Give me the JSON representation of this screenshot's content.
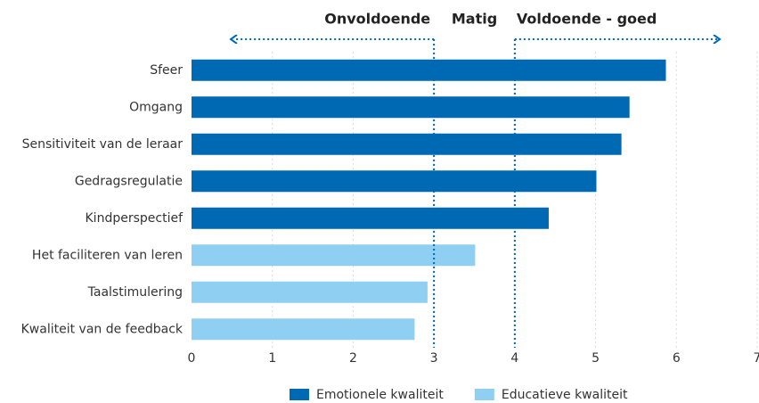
{
  "chart_data": {
    "type": "bar",
    "orientation": "horizontal",
    "categories": [
      "Sfeer",
      "Omgang",
      "Sensitiviteit van de leraar",
      "Gedragsregulatie",
      "Kindperspectief",
      "Het faciliteren van leren",
      "Taalstimulering",
      "Kwaliteit van de feedback"
    ],
    "series": [
      {
        "name": "Emotionele kwaliteit",
        "color": "#0069b4",
        "values": [
          5.87,
          5.42,
          5.32,
          5.01,
          4.42,
          null,
          null,
          null
        ]
      },
      {
        "name": "Educatieve kwaliteit",
        "color": "#8fd0f2",
        "values": [
          null,
          null,
          null,
          null,
          null,
          3.51,
          2.92,
          2.76
        ]
      }
    ],
    "xlim": [
      0,
      7
    ],
    "xticks": [
      0,
      1,
      2,
      3,
      4,
      5,
      6,
      7
    ],
    "grid": true,
    "thresholds": [
      3,
      4
    ],
    "annotations": [
      "Onvoldoende",
      "Matig",
      "Voldoende - goed"
    ],
    "legend": "bottom"
  }
}
